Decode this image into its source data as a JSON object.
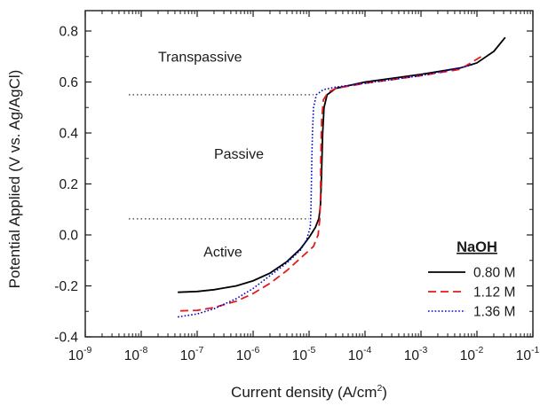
{
  "chart_data": {
    "type": "line",
    "title": "",
    "xlabel": {
      "text": "Current density (A/cm",
      "sup": "2",
      "tail": ")"
    },
    "ylabel": "Potential Applied (V vs. Ag/AgCl)",
    "xscale": "log",
    "xlim": [
      1e-09,
      0.1
    ],
    "ylim": [
      -0.4,
      0.88
    ],
    "x_ticks": [
      {
        "value": 1e-09,
        "base": "10",
        "exp": "-9"
      },
      {
        "value": 1e-08,
        "base": "10",
        "exp": "-8"
      },
      {
        "value": 1e-07,
        "base": "10",
        "exp": "-7"
      },
      {
        "value": 1e-06,
        "base": "10",
        "exp": "-6"
      },
      {
        "value": 1e-05,
        "base": "10",
        "exp": "-5"
      },
      {
        "value": 0.0001,
        "base": "10",
        "exp": "-4"
      },
      {
        "value": 0.001,
        "base": "10",
        "exp": "-3"
      },
      {
        "value": 0.01,
        "base": "10",
        "exp": "-2"
      },
      {
        "value": 0.1,
        "base": "10",
        "exp": "-1"
      }
    ],
    "y_ticks": [
      {
        "value": -0.4,
        "label": "-0.4"
      },
      {
        "value": -0.2,
        "label": "-0.2"
      },
      {
        "value": 0.0,
        "label": "0.0"
      },
      {
        "value": 0.2,
        "label": "0.2"
      },
      {
        "value": 0.4,
        "label": "0.4"
      },
      {
        "value": 0.6,
        "label": "0.6"
      },
      {
        "value": 0.8,
        "label": "0.8"
      }
    ],
    "grid": false,
    "legend": {
      "title": "NaOH",
      "position": "bottom-right"
    },
    "regions": [
      {
        "label": "Transpassive",
        "x": 2e-08,
        "y": 0.68
      },
      {
        "label": "Passive",
        "x": 2e-07,
        "y": 0.3
      },
      {
        "label": "Active",
        "x": 1.3e-07,
        "y": -0.085
      }
    ],
    "boundaries": [
      {
        "y": 0.55,
        "x_from": 6e-09,
        "x_to": 1.2e-05
      },
      {
        "y": 0.063,
        "x_from": 6e-09,
        "x_to": 1e-05
      }
    ],
    "series": [
      {
        "name": "0.80 M",
        "color": "#000000",
        "dash": "solid",
        "points": [
          [
            4.5e-08,
            -0.225
          ],
          [
            1e-07,
            -0.222
          ],
          [
            2e-07,
            -0.215
          ],
          [
            5e-07,
            -0.2
          ],
          [
            1e-06,
            -0.18
          ],
          [
            2e-06,
            -0.15
          ],
          [
            4e-06,
            -0.105
          ],
          [
            7e-06,
            -0.055
          ],
          [
            1e-05,
            -0.01
          ],
          [
            1.3e-05,
            0.03
          ],
          [
            1.5e-05,
            0.065
          ],
          [
            1.6e-05,
            0.12
          ],
          [
            1.65e-05,
            0.2
          ],
          [
            1.7e-05,
            0.3
          ],
          [
            1.75e-05,
            0.4
          ],
          [
            1.85e-05,
            0.5
          ],
          [
            2.1e-05,
            0.55
          ],
          [
            3e-05,
            0.575
          ],
          [
            0.0001,
            0.6
          ],
          [
            0.001,
            0.63
          ],
          [
            0.005,
            0.655
          ],
          [
            0.01,
            0.675
          ],
          [
            0.02,
            0.72
          ],
          [
            0.032,
            0.775
          ]
        ]
      },
      {
        "name": "1.12 M",
        "color": "#e41a1c",
        "dash": "dashed",
        "points": [
          [
            5e-08,
            -0.298
          ],
          [
            1e-07,
            -0.296
          ],
          [
            2e-07,
            -0.285
          ],
          [
            5e-07,
            -0.26
          ],
          [
            1e-06,
            -0.23
          ],
          [
            2e-06,
            -0.19
          ],
          [
            4e-06,
            -0.14
          ],
          [
            8e-06,
            -0.08
          ],
          [
            1.2e-05,
            -0.045
          ],
          [
            1.45e-05,
            0.0
          ],
          [
            1.55e-05,
            0.06
          ],
          [
            1.6e-05,
            0.15
          ],
          [
            1.62e-05,
            0.3
          ],
          [
            1.68e-05,
            0.45
          ],
          [
            1.8e-05,
            0.53
          ],
          [
            2.2e-05,
            0.56
          ],
          [
            3e-05,
            0.575
          ],
          [
            0.0001,
            0.595
          ],
          [
            0.001,
            0.625
          ],
          [
            0.005,
            0.65
          ],
          [
            0.012,
            0.7
          ]
        ]
      },
      {
        "name": "1.36 M",
        "color": "#0000cc",
        "dash": "dotted",
        "points": [
          [
            4.5e-08,
            -0.322
          ],
          [
            1e-07,
            -0.31
          ],
          [
            2e-07,
            -0.29
          ],
          [
            5e-07,
            -0.25
          ],
          [
            1e-06,
            -0.21
          ],
          [
            2e-06,
            -0.16
          ],
          [
            4e-06,
            -0.11
          ],
          [
            7e-06,
            -0.06
          ],
          [
            9e-06,
            -0.02
          ],
          [
            1.05e-05,
            0.03
          ],
          [
            1.08e-05,
            0.1
          ],
          [
            1.1e-05,
            0.2
          ],
          [
            1.12e-05,
            0.3
          ],
          [
            1.15e-05,
            0.4
          ],
          [
            1.2e-05,
            0.5
          ],
          [
            1.35e-05,
            0.55
          ],
          [
            1.8e-05,
            0.57
          ],
          [
            3e-05,
            0.58
          ],
          [
            0.0001,
            0.595
          ],
          [
            0.001,
            0.625
          ],
          [
            0.005,
            0.655
          ],
          [
            0.009,
            0.67
          ]
        ]
      }
    ]
  }
}
